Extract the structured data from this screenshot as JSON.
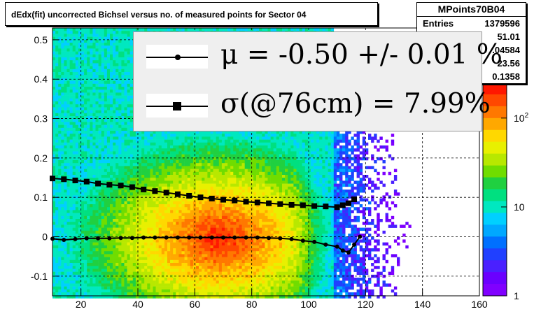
{
  "title": "dEdx(fit) uncorrected Bichsel versus no. of measured points for Sector 04",
  "stats": {
    "name": "MPoints70B04",
    "rows": [
      {
        "label": "Entries",
        "value": "1379596"
      },
      {
        "label": "",
        "value": "51.01"
      },
      {
        "label": "",
        "value": ".04584"
      },
      {
        "label": "",
        "value": "23.56"
      },
      {
        "label": "",
        "value": "0.1358"
      }
    ]
  },
  "legend": {
    "mu_text": "μ  = -0.50 +/-  0.01 %",
    "sigma_text": "σ(@76cm) =  7.99%"
  },
  "chart_data": {
    "type": "heatmap",
    "title": "dEdx(fit) uncorrected Bichsel versus no. of measured points for Sector 04",
    "xlim": [
      10,
      160
    ],
    "ylim": [
      -0.15,
      0.53
    ],
    "x_ticks": [
      "20",
      "40",
      "60",
      "80",
      "100",
      "120",
      "140",
      "160"
    ],
    "y_ticks": [
      "-0.1",
      "0",
      "0.1",
      "0.2",
      "0.3",
      "0.4",
      "0.5"
    ],
    "z_scale": "log",
    "z_ticks": [
      "1",
      "10",
      "10^2"
    ],
    "grid": true,
    "series": [
      {
        "name": "μ",
        "marker": "circle",
        "x": [
          10,
          14,
          18,
          22,
          26,
          30,
          34,
          38,
          42,
          46,
          50,
          54,
          58,
          62,
          66,
          70,
          74,
          78,
          82,
          86,
          90,
          94,
          98,
          102,
          106,
          110,
          112,
          114,
          116,
          118
        ],
        "y": [
          -0.005,
          -0.008,
          -0.006,
          -0.004,
          -0.004,
          -0.004,
          -0.003,
          -0.003,
          -0.002,
          -0.002,
          -0.002,
          -0.002,
          -0.002,
          -0.002,
          -0.002,
          -0.002,
          -0.002,
          -0.002,
          -0.002,
          -0.003,
          -0.004,
          -0.006,
          -0.01,
          -0.013,
          -0.02,
          -0.025,
          -0.035,
          -0.04,
          -0.02,
          0.0
        ]
      },
      {
        "name": "σ(@76cm)",
        "marker": "square",
        "x": [
          10,
          14,
          18,
          22,
          26,
          30,
          34,
          38,
          42,
          46,
          50,
          54,
          58,
          62,
          66,
          70,
          74,
          78,
          82,
          86,
          90,
          94,
          98,
          102,
          106,
          110,
          112,
          114,
          116
        ],
        "y": [
          0.148,
          0.146,
          0.143,
          0.14,
          0.135,
          0.132,
          0.13,
          0.126,
          0.12,
          0.116,
          0.112,
          0.108,
          0.104,
          0.1,
          0.097,
          0.094,
          0.092,
          0.089,
          0.087,
          0.085,
          0.083,
          0.081,
          0.08,
          0.078,
          0.077,
          0.075,
          0.08,
          0.085,
          0.095
        ]
      }
    ]
  }
}
